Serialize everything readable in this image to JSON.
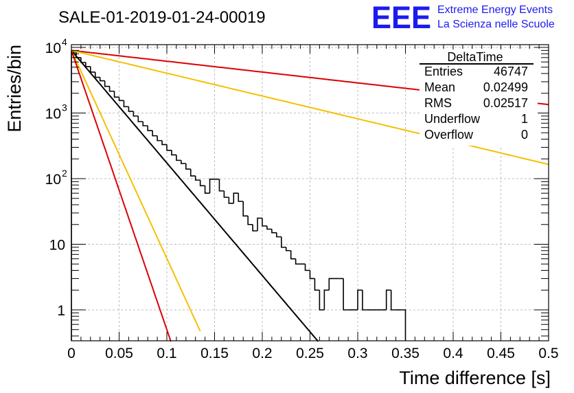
{
  "title": "SALE-01-2019-01-24-00019",
  "logo": {
    "mark": "EEE",
    "line1": "Extreme Energy Events",
    "line2": "La Scienza nelle Scuole",
    "color": "#1b1bf0"
  },
  "stats": {
    "name": "DeltaTime",
    "rows": [
      {
        "label": "Entries",
        "value": "46747"
      },
      {
        "label": "Mean",
        "value": "0.02499"
      },
      {
        "label": "RMS",
        "value": "0.02517"
      },
      {
        "label": "Underflow",
        "value": "1"
      },
      {
        "label": "Overflow",
        "value": "0"
      }
    ]
  },
  "chart_data": {
    "type": "line",
    "title": "SALE-01-2019-01-24-00019",
    "xlabel": "Time difference [s]",
    "ylabel": "Entries/bin",
    "xlim": [
      0,
      0.5
    ],
    "ylim": [
      0.33,
      16000
    ],
    "yscale": "log",
    "grid": true,
    "xticks": [
      "0",
      "0.05",
      "0.1",
      "0.15",
      "0.2",
      "0.25",
      "0.3",
      "0.35",
      "0.4",
      "0.45",
      "0.5"
    ],
    "yticks": [
      {
        "value": 1,
        "label": "1"
      },
      {
        "value": 10,
        "label": "10"
      },
      {
        "value": 100,
        "label": "10",
        "exp": "2"
      },
      {
        "value": 1000,
        "label": "10",
        "exp": "3"
      },
      {
        "value": 10000,
        "label": "10",
        "exp": "4"
      }
    ],
    "histogram": {
      "bin_width": 0.005,
      "bins": [
        [
          0.0,
          8500
        ],
        [
          0.005,
          7000
        ],
        [
          0.01,
          5900
        ],
        [
          0.015,
          5100
        ],
        [
          0.02,
          4200
        ],
        [
          0.025,
          3500
        ],
        [
          0.03,
          3100
        ],
        [
          0.035,
          2550
        ],
        [
          0.04,
          2150
        ],
        [
          0.045,
          1750
        ],
        [
          0.05,
          1550
        ],
        [
          0.055,
          1250
        ],
        [
          0.06,
          1060
        ],
        [
          0.065,
          900
        ],
        [
          0.07,
          740
        ],
        [
          0.075,
          640
        ],
        [
          0.08,
          540
        ],
        [
          0.085,
          450
        ],
        [
          0.09,
          380
        ],
        [
          0.095,
          330
        ],
        [
          0.1,
          270
        ],
        [
          0.105,
          230
        ],
        [
          0.11,
          190
        ],
        [
          0.115,
          170
        ],
        [
          0.12,
          140
        ],
        [
          0.125,
          110
        ],
        [
          0.13,
          95
        ],
        [
          0.135,
          78
        ],
        [
          0.14,
          60
        ],
        [
          0.145,
          98
        ],
        [
          0.15,
          98
        ],
        [
          0.155,
          65
        ],
        [
          0.16,
          52
        ],
        [
          0.165,
          42
        ],
        [
          0.17,
          60
        ],
        [
          0.175,
          45
        ],
        [
          0.18,
          27
        ],
        [
          0.185,
          20
        ],
        [
          0.19,
          16
        ],
        [
          0.195,
          25
        ],
        [
          0.2,
          19
        ],
        [
          0.205,
          17
        ],
        [
          0.21,
          15
        ],
        [
          0.215,
          13
        ],
        [
          0.22,
          9
        ],
        [
          0.225,
          8
        ],
        [
          0.23,
          6
        ],
        [
          0.235,
          5
        ],
        [
          0.24,
          5
        ],
        [
          0.245,
          4
        ],
        [
          0.25,
          3
        ],
        [
          0.255,
          2
        ],
        [
          0.26,
          1
        ],
        [
          0.265,
          2
        ],
        [
          0.27,
          3
        ],
        [
          0.275,
          3
        ],
        [
          0.28,
          3
        ],
        [
          0.285,
          1
        ],
        [
          0.29,
          1
        ],
        [
          0.295,
          1
        ],
        [
          0.3,
          2
        ],
        [
          0.305,
          1
        ],
        [
          0.31,
          1
        ],
        [
          0.315,
          1
        ],
        [
          0.32,
          1
        ],
        [
          0.325,
          1
        ],
        [
          0.33,
          2
        ],
        [
          0.335,
          1
        ],
        [
          0.34,
          1
        ],
        [
          0.345,
          1
        ]
      ]
    },
    "series": [
      {
        "type": "exp",
        "color": "#000000",
        "a": 9000,
        "b": -39.5,
        "x_end": 0.262
      },
      {
        "type": "exp",
        "color": "#dd0000",
        "a": 9000,
        "b": -3.8,
        "x_end": 0.5
      },
      {
        "type": "exp",
        "color": "#f5c000",
        "a": 9000,
        "b": -8.0,
        "x_end": 0.5
      },
      {
        "type": "exp",
        "color": "#f5c000",
        "a": 9000,
        "b": -73,
        "x_end": 0.135
      },
      {
        "type": "exp",
        "color": "#dd0000",
        "a": 9000,
        "b": -98,
        "x_end": 0.105
      }
    ]
  }
}
